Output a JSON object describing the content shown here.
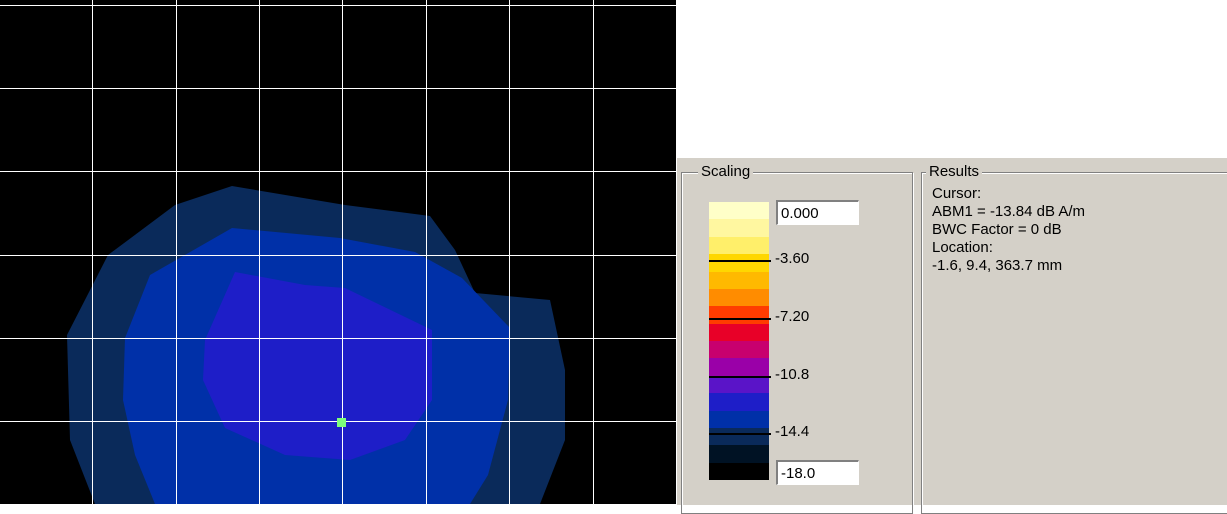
{
  "scaling": {
    "title": "Scaling",
    "max_value": "0.000",
    "min_value": "-18.0",
    "ticks": [
      "-3.60",
      "-7.20",
      "-10.8",
      "-14.4"
    ],
    "colors": [
      "#ffffc8",
      "#fff7a0",
      "#ffef6a",
      "#ffd700",
      "#ffb900",
      "#ff8c00",
      "#ff3c00",
      "#e80028",
      "#c8006e",
      "#9a00a8",
      "#5a14c8",
      "#1e1ec8",
      "#0030a8",
      "#0a2a5a",
      "#001224",
      "#000000"
    ]
  },
  "results": {
    "title": "Results",
    "lines": [
      "Cursor:",
      "ABM1 = -13.84 dB A/m",
      "BWC Factor = 0 dB",
      "Location:",
      "-1.6, 9.4, 363.7 mm"
    ]
  },
  "plot": {
    "background": "#000000",
    "grid_color": "#ffffff",
    "contour_colors": [
      "#0a2a5a",
      "#0030a8",
      "#1e1ec8"
    ],
    "cursor_color": "#7cff7c"
  }
}
